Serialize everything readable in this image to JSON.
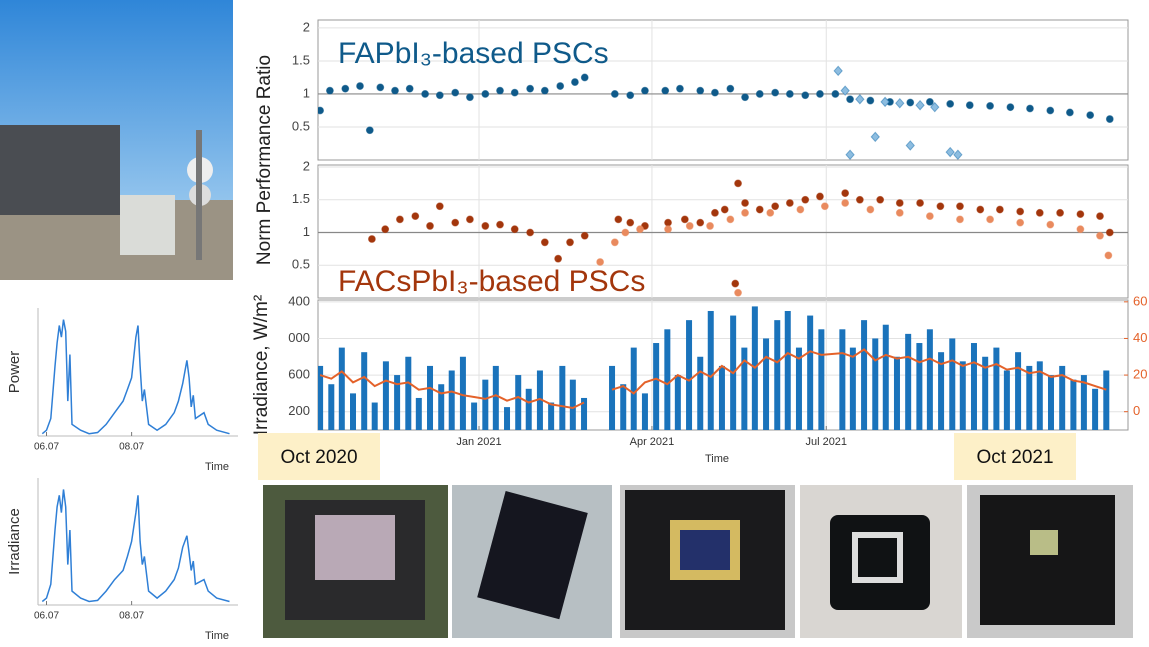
{
  "chart_data": [
    {
      "type": "scatter",
      "title": "FAPbI₃-based PSCs",
      "ylabel": "Norm Performance Ratio",
      "xlim": [
        2020.77,
        2021.927
      ],
      "ylim": [
        0,
        2.12
      ],
      "yticks": [
        0.5,
        1,
        1.5,
        2
      ],
      "hline": 1,
      "grid": true,
      "series": [
        {
          "color": "#0f5a8a",
          "marker": "circle",
          "x": [
            2020.773,
            2020.787,
            2020.809,
            2020.83,
            2020.844,
            2020.859,
            2020.88,
            2020.901,
            2020.923,
            2020.944,
            2020.966,
            2020.987,
            2021.009,
            2021.03,
            2021.051,
            2021.073,
            2021.094,
            2021.116,
            2021.137,
            2021.151,
            2021.194,
            2021.216,
            2021.237,
            2021.266,
            2021.287,
            2021.316,
            2021.337,
            2021.359,
            2021.38,
            2021.401,
            2021.423,
            2021.444,
            2021.466,
            2021.487,
            2021.509,
            2021.53,
            2021.559,
            2021.587,
            2021.616,
            2021.644,
            2021.673,
            2021.701,
            2021.73,
            2021.759,
            2021.787,
            2021.816,
            2021.844,
            2021.873,
            2021.901
          ],
          "values": [
            0.75,
            1.05,
            1.08,
            1.12,
            0.45,
            1.1,
            1.05,
            1.08,
            1.0,
            0.98,
            1.02,
            0.95,
            1.0,
            1.05,
            1.02,
            1.08,
            1.05,
            1.12,
            1.18,
            1.25,
            1.0,
            0.98,
            1.05,
            1.05,
            1.08,
            1.05,
            1.02,
            1.08,
            0.95,
            1.0,
            1.02,
            1.0,
            0.98,
            1.0,
            1.0,
            0.92,
            0.9,
            0.88,
            0.87,
            0.88,
            0.85,
            0.83,
            0.82,
            0.8,
            0.78,
            0.75,
            0.72,
            0.68,
            0.62
          ]
        },
        {
          "color": "#8dbde0",
          "marker": "diamond",
          "x": [
            2021.513,
            2021.523,
            2021.53,
            2021.544,
            2021.566,
            2021.58,
            2021.601,
            2021.616,
            2021.63,
            2021.651,
            2021.673,
            2021.684
          ],
          "values": [
            1.35,
            1.05,
            0.08,
            0.92,
            0.35,
            0.88,
            0.86,
            0.22,
            0.83,
            0.8,
            0.12,
            0.08
          ]
        }
      ]
    },
    {
      "type": "scatter",
      "title": "FACsPbI₃-based PSCs",
      "xlim": [
        2020.77,
        2021.927
      ],
      "ylim": [
        0,
        2.03
      ],
      "yticks": [
        0.5,
        1,
        1.5,
        2
      ],
      "hline": 1,
      "grid": true,
      "series": [
        {
          "color": "#a3360c",
          "marker": "circle",
          "x": [
            2020.847,
            2020.866,
            2020.887,
            2020.909,
            2020.93,
            2020.944,
            2020.966,
            2020.987,
            2021.009,
            2021.03,
            2021.051,
            2021.073,
            2021.094,
            2021.113,
            2021.13,
            2021.151,
            2021.199,
            2021.216,
            2021.237,
            2021.27,
            2021.294,
            2021.316,
            2021.337,
            2021.351,
            2021.37,
            2021.38,
            2021.401,
            2021.423,
            2021.444,
            2021.466,
            2021.487,
            2021.523,
            2021.544,
            2021.573,
            2021.601,
            2021.63,
            2021.659,
            2021.687,
            2021.716,
            2021.744,
            2021.773,
            2021.801,
            2021.83,
            2021.859,
            2021.887,
            2021.901,
            2021.366
          ],
          "values": [
            0.9,
            1.05,
            1.2,
            1.25,
            1.1,
            1.4,
            1.15,
            1.2,
            1.1,
            1.12,
            1.05,
            1.0,
            0.85,
            0.6,
            0.85,
            0.95,
            1.2,
            1.15,
            1.1,
            1.15,
            1.2,
            1.15,
            1.3,
            1.35,
            1.75,
            1.45,
            1.35,
            1.4,
            1.45,
            1.5,
            1.55,
            1.6,
            1.5,
            1.5,
            1.45,
            1.45,
            1.4,
            1.4,
            1.35,
            1.35,
            1.32,
            1.3,
            1.3,
            1.28,
            1.25,
            1.0,
            0.22
          ]
        },
        {
          "color": "#e98a5e",
          "marker": "circle",
          "x": [
            2021.173,
            2021.194,
            2021.209,
            2021.23,
            2021.27,
            2021.301,
            2021.33,
            2021.359,
            2021.37,
            2021.38,
            2021.416,
            2021.459,
            2021.494,
            2021.523,
            2021.559,
            2021.601,
            2021.644,
            2021.687,
            2021.73,
            2021.773,
            2021.816,
            2021.859,
            2021.887,
            2021.899
          ],
          "values": [
            0.55,
            0.85,
            1.0,
            1.05,
            1.05,
            1.1,
            1.1,
            1.2,
            0.08,
            1.3,
            1.3,
            1.35,
            1.4,
            1.45,
            1.35,
            1.3,
            1.25,
            1.2,
            1.2,
            1.15,
            1.12,
            1.05,
            0.95,
            0.65
          ]
        }
      ]
    },
    {
      "type": "bar",
      "ylabel": "Irradiance, W/m²",
      "xlabel": "Time",
      "annotations": [
        "Oct 2020",
        "Oct 2021"
      ],
      "xlim": [
        2020.77,
        2021.927
      ],
      "ylim": [
        0,
        1420
      ],
      "y2lim": [
        -10,
        61
      ],
      "yticks": [
        200,
        600,
        {
          "value": 1000,
          "label": "000"
        },
        {
          "value": 1400,
          "label": "400"
        }
      ],
      "y2ticks": [
        0,
        20,
        40,
        60
      ],
      "xticks": [
        {
          "value": 2021.0,
          "label": "Jan 2021"
        },
        {
          "value": 2021.247,
          "label": "Apr 2021"
        },
        {
          "value": 2021.496,
          "label": "Jul 2021"
        }
      ],
      "x": [
        2020.773,
        2020.789,
        2020.804,
        2020.82,
        2020.836,
        2020.851,
        2020.867,
        2020.883,
        2020.899,
        2020.914,
        2020.93,
        2020.946,
        2020.961,
        2020.977,
        2020.993,
        2021.009,
        2021.024,
        2021.04,
        2021.056,
        2021.071,
        2021.087,
        2021.103,
        2021.119,
        2021.134,
        2021.15,
        2021.17,
        2021.19,
        2021.206,
        2021.221,
        2021.237,
        2021.253,
        2021.269,
        2021.284,
        2021.3,
        2021.316,
        2021.331,
        2021.347,
        2021.363,
        2021.379,
        2021.394,
        2021.41,
        2021.426,
        2021.441,
        2021.457,
        2021.473,
        2021.489,
        2021.519,
        2021.534,
        2021.55,
        2021.566,
        2021.581,
        2021.597,
        2021.613,
        2021.629,
        2021.644,
        2021.66,
        2021.676,
        2021.691,
        2021.707,
        2021.723,
        2021.739,
        2021.754,
        2021.77,
        2021.786,
        2021.801,
        2021.817,
        2021.833,
        2021.849,
        2021.864,
        2021.88,
        2021.896
      ],
      "series": [
        {
          "color": "#1a73bb",
          "values": [
            700,
            500,
            900,
            400,
            850,
            300,
            750,
            600,
            800,
            350,
            700,
            500,
            650,
            800,
            300,
            550,
            700,
            250,
            600,
            450,
            650,
            300,
            700,
            550,
            350,
            null,
            700,
            500,
            900,
            400,
            950,
            1100,
            600,
            1200,
            800,
            1300,
            700,
            1250,
            900,
            1350,
            1000,
            1200,
            1300,
            900,
            1250,
            1100,
            1100,
            900,
            1200,
            1000,
            1150,
            800,
            1050,
            950,
            1100,
            850,
            1000,
            750,
            950,
            800,
            900,
            650,
            850,
            700,
            750,
            600,
            700,
            550,
            600,
            450,
            650
          ]
        },
        {
          "color": "#e4622a",
          "type": "line",
          "axis": "y2",
          "values": [
            20,
            18,
            22,
            16,
            19,
            14,
            17,
            15,
            16,
            12,
            13,
            10,
            11,
            9,
            8,
            7,
            9,
            6,
            8,
            5,
            7,
            4,
            3,
            2,
            5,
            null,
            12,
            14,
            10,
            16,
            18,
            15,
            20,
            17,
            22,
            19,
            25,
            21,
            28,
            24,
            30,
            27,
            32,
            29,
            33,
            31,
            32,
            30,
            34,
            28,
            31,
            29,
            30,
            27,
            29,
            26,
            28,
            25,
            27,
            24,
            26,
            23,
            24,
            21,
            22,
            19,
            20,
            17,
            16,
            14,
            12
          ]
        }
      ]
    },
    {
      "type": "line",
      "ylabel": "Power",
      "xlabel": "Time",
      "color": "#2f7fd6",
      "xlim": [
        5.8,
        10.5
      ],
      "ylim": [
        0,
        1.1
      ],
      "xticks": [
        {
          "value": 6,
          "label": "06.07"
        },
        {
          "value": 8,
          "label": "08.07"
        }
      ],
      "x": [
        5.9,
        6.0,
        6.1,
        6.2,
        6.25,
        6.3,
        6.35,
        6.4,
        6.45,
        6.5,
        6.55,
        6.6,
        6.8,
        7.0,
        7.2,
        7.4,
        7.6,
        7.8,
        7.9,
        8.0,
        8.1,
        8.15,
        8.2,
        8.25,
        8.3,
        8.4,
        8.6,
        8.8,
        9.0,
        9.1,
        9.2,
        9.3,
        9.35,
        9.4,
        9.45,
        9.5,
        9.7,
        9.8,
        10.0,
        10.3
      ],
      "values": [
        0.02,
        0.05,
        0.15,
        0.6,
        0.8,
        0.95,
        0.85,
        1.0,
        0.9,
        0.3,
        0.7,
        0.1,
        0.05,
        0.02,
        0.03,
        0.1,
        0.2,
        0.3,
        0.4,
        0.5,
        0.85,
        0.95,
        0.6,
        0.3,
        0.4,
        0.1,
        0.05,
        0.1,
        0.2,
        0.3,
        0.45,
        0.65,
        0.5,
        0.25,
        0.35,
        0.15,
        0.2,
        0.1,
        0.05,
        0.02
      ]
    },
    {
      "type": "line",
      "ylabel": "Irradiance",
      "xlabel": "Time",
      "color": "#2f7fd6",
      "xlim": [
        5.8,
        10.5
      ],
      "ylim": [
        0,
        1.1
      ],
      "xticks": [
        {
          "value": 6,
          "label": "06.07"
        },
        {
          "value": 8,
          "label": "08.07"
        }
      ],
      "x": [
        5.9,
        6.0,
        6.1,
        6.2,
        6.25,
        6.3,
        6.35,
        6.4,
        6.45,
        6.5,
        6.55,
        6.6,
        6.8,
        7.0,
        7.2,
        7.4,
        7.6,
        7.8,
        7.9,
        8.0,
        8.1,
        8.15,
        8.2,
        8.25,
        8.3,
        8.4,
        8.6,
        8.8,
        9.0,
        9.1,
        9.2,
        9.3,
        9.35,
        9.4,
        9.45,
        9.5,
        9.7,
        9.8,
        10.0,
        10.3
      ],
      "values": [
        0.03,
        0.06,
        0.18,
        0.65,
        0.85,
        0.95,
        0.8,
        1.0,
        0.85,
        0.35,
        0.65,
        0.12,
        0.06,
        0.03,
        0.04,
        0.12,
        0.22,
        0.3,
        0.42,
        0.55,
        0.8,
        0.95,
        0.55,
        0.35,
        0.42,
        0.12,
        0.06,
        0.12,
        0.22,
        0.32,
        0.5,
        0.6,
        0.45,
        0.3,
        0.38,
        0.18,
        0.22,
        0.12,
        0.06,
        0.03
      ]
    }
  ]
}
